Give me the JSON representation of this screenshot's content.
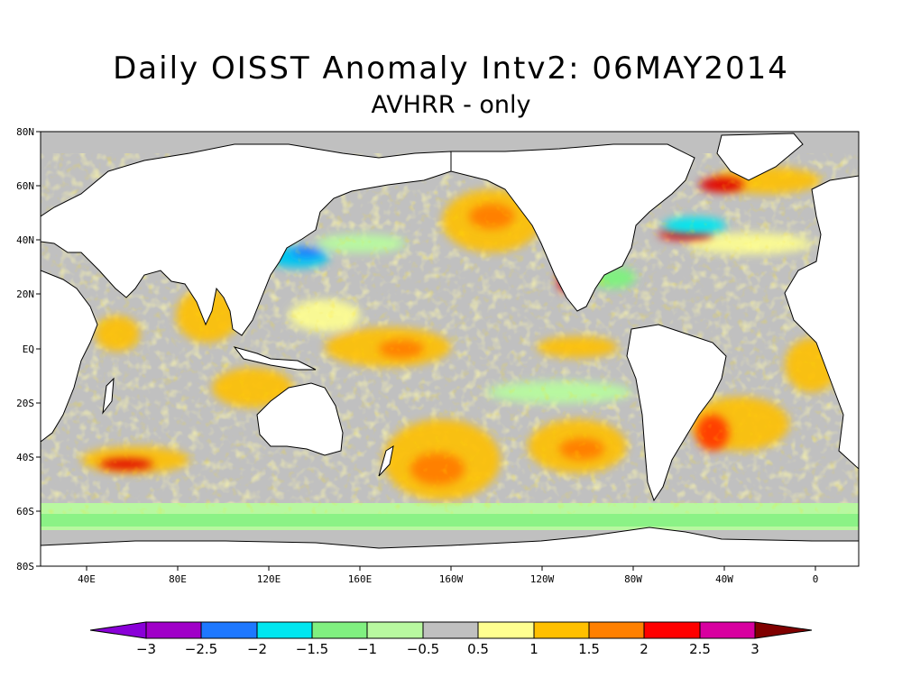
{
  "title": "Daily OISST Anomaly Intv2: 06MAY2014",
  "subtitle": "AVHRR - only",
  "map": {
    "projection": "cylindrical equidistant",
    "lat_ticks": [
      "80N",
      "60N",
      "40N",
      "20N",
      "EQ",
      "20S",
      "40S",
      "60S",
      "80S"
    ],
    "lon_ticks": [
      "40E",
      "80E",
      "120E",
      "160E",
      "160W",
      "120W",
      "80W",
      "40W",
      "0"
    ],
    "land_color": "#ffffff",
    "sea_ice_color": "#c0c0c0",
    "notable_features": [
      "warm anomaly North Pacific (Gulf of Alaska)",
      "warm anomaly central equatorial Pacific",
      "warm anomaly South Pacific mid-latitudes",
      "cold anomaly Kuroshio extension",
      "mixed anomalies Gulf Stream region"
    ]
  },
  "colorbar": {
    "levels": [
      "−3",
      "−2.5",
      "−2",
      "−1.5",
      "−1",
      "−0.5",
      "0.5",
      "1",
      "1.5",
      "2",
      "2.5",
      "3"
    ],
    "colors": [
      "#8a00d8",
      "#a000c8",
      "#1e78ff",
      "#00e6f0",
      "#80f080",
      "#b8f8a0",
      "#c0c0c0",
      "#ffff90",
      "#ffc000",
      "#ff8000",
      "#ff0000",
      "#d800a0",
      "#800000"
    ]
  }
}
